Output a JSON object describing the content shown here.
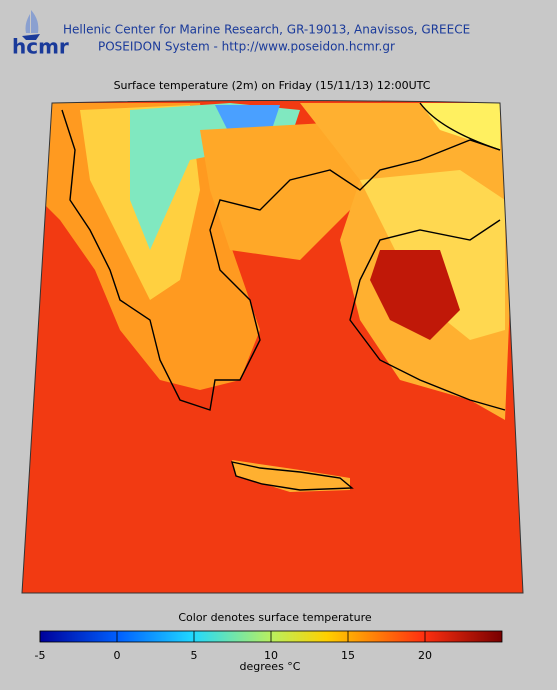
{
  "header": {
    "logo": "hcmr",
    "line1": "Hellenic Center for Marine Research, GR-19013, Anavissos, GREECE",
    "line2": "POSEIDON System - http://www.poseidon.hcmr.gr"
  },
  "map": {
    "title": "Surface temperature (2m) on Friday (15/11/13) 12:00UTC"
  },
  "colorbar": {
    "title": "Color denotes surface temperature",
    "label": "degrees °C",
    "range": [
      -5,
      25
    ],
    "ticks": [
      -5,
      0,
      5,
      10,
      15,
      20
    ]
  }
}
